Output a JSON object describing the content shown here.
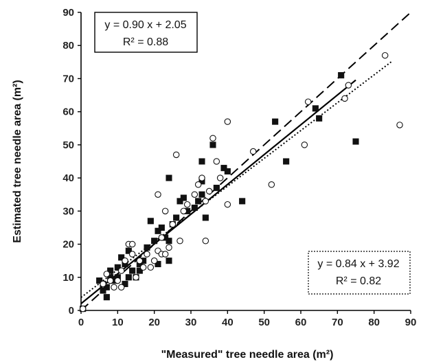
{
  "chart_data": {
    "type": "scatter",
    "title": "",
    "xlabel": "\"Measured\" tree needle area (m²)",
    "ylabel": "Estimated tree needle area (m²)",
    "xlim": [
      0,
      90
    ],
    "ylim": [
      0,
      90
    ],
    "xticks": [
      "0",
      "10",
      "20",
      "30",
      "40",
      "50",
      "60",
      "70",
      "80",
      "90"
    ],
    "yticks": [
      "0",
      "10",
      "20",
      "30",
      "40",
      "50",
      "60",
      "70",
      "80",
      "90"
    ],
    "grid": false,
    "legend": "none",
    "series": [
      {
        "marker": "filled-square",
        "color": "#111111",
        "points": [
          [
            0.5,
            0.5
          ],
          [
            5,
            9
          ],
          [
            6,
            8
          ],
          [
            6,
            6
          ],
          [
            7,
            4
          ],
          [
            7,
            7
          ],
          [
            8,
            10
          ],
          [
            8,
            12
          ],
          [
            9,
            9
          ],
          [
            10,
            10
          ],
          [
            10,
            13
          ],
          [
            11,
            16
          ],
          [
            12,
            8
          ],
          [
            12,
            14
          ],
          [
            13,
            10
          ],
          [
            13,
            18
          ],
          [
            14,
            12
          ],
          [
            15,
            10
          ],
          [
            16,
            12
          ],
          [
            16,
            14
          ],
          [
            17,
            15
          ],
          [
            18,
            19
          ],
          [
            19,
            27
          ],
          [
            20,
            21
          ],
          [
            21,
            14
          ],
          [
            21,
            24
          ],
          [
            22,
            25
          ],
          [
            23,
            22
          ],
          [
            24,
            15
          ],
          [
            24,
            21
          ],
          [
            24,
            40
          ],
          [
            25,
            26
          ],
          [
            26,
            28
          ],
          [
            27,
            33
          ],
          [
            28,
            34
          ],
          [
            29,
            30
          ],
          [
            31,
            31
          ],
          [
            32,
            33
          ],
          [
            33,
            35
          ],
          [
            33,
            39
          ],
          [
            34,
            28
          ],
          [
            33,
            45
          ],
          [
            36,
            50
          ],
          [
            37,
            37
          ],
          [
            39,
            43
          ],
          [
            40,
            42
          ],
          [
            44,
            33
          ],
          [
            53,
            57
          ],
          [
            56,
            45
          ],
          [
            64,
            61
          ],
          [
            65,
            58
          ],
          [
            71,
            71
          ],
          [
            75,
            51
          ]
        ]
      },
      {
        "marker": "open-circle",
        "color": "#111111",
        "points": [
          [
            0.5,
            0.5
          ],
          [
            6,
            8
          ],
          [
            7,
            11
          ],
          [
            8,
            9
          ],
          [
            9,
            7
          ],
          [
            10,
            9
          ],
          [
            11,
            12
          ],
          [
            11,
            7
          ],
          [
            12,
            15
          ],
          [
            13,
            20
          ],
          [
            14,
            20
          ],
          [
            14,
            17
          ],
          [
            15,
            10
          ],
          [
            16,
            15
          ],
          [
            17,
            13
          ],
          [
            18,
            17
          ],
          [
            19,
            13
          ],
          [
            20,
            15
          ],
          [
            21,
            18
          ],
          [
            21,
            35
          ],
          [
            22,
            17
          ],
          [
            22,
            22
          ],
          [
            23,
            17
          ],
          [
            23,
            30
          ],
          [
            24,
            19
          ],
          [
            25,
            26
          ],
          [
            26,
            47
          ],
          [
            27,
            21
          ],
          [
            28,
            30
          ],
          [
            29,
            32
          ],
          [
            31,
            35
          ],
          [
            32,
            38
          ],
          [
            33,
            40
          ],
          [
            34,
            21
          ],
          [
            34,
            33
          ],
          [
            35,
            36
          ],
          [
            36,
            52
          ],
          [
            37,
            45
          ],
          [
            38,
            40
          ],
          [
            40,
            32
          ],
          [
            40,
            57
          ],
          [
            47,
            48
          ],
          [
            52,
            38
          ],
          [
            61,
            50
          ],
          [
            62,
            63
          ],
          [
            72,
            64
          ],
          [
            73,
            68
          ],
          [
            83,
            77
          ],
          [
            87,
            56
          ]
        ]
      }
    ],
    "fit_lines": [
      {
        "name": "solid",
        "slope": 0.9,
        "intercept": 2.05,
        "x_range": [
          0,
          75
        ],
        "dash": "solid"
      },
      {
        "name": "dotted",
        "slope": 0.84,
        "intercept": 3.92,
        "x_range": [
          0,
          85
        ],
        "dash": "dotted"
      },
      {
        "name": "dashed",
        "slope": 1.0,
        "intercept": 0,
        "x_range": [
          0,
          90
        ],
        "dash": "dashed"
      }
    ],
    "annotations": {
      "eq1_line": "y = 0.90 x + 2.05",
      "eq1_r2": "R² = 0.88",
      "eq2_line": "y = 0.84 x + 3.92",
      "eq2_r2": "R² = 0.82"
    }
  }
}
